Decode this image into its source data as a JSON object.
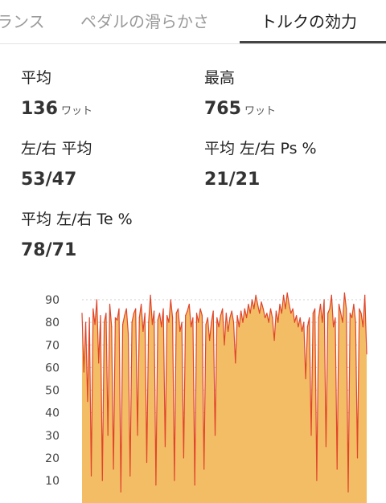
{
  "tabs": [
    {
      "label": "ランス",
      "active": false
    },
    {
      "label": "ペダルの滑らかさ",
      "active": false
    },
    {
      "label": "トルクの効力",
      "active": true
    }
  ],
  "stats": {
    "avg": {
      "label": "平均",
      "value": "136",
      "unit": "ワット"
    },
    "max": {
      "label": "最高",
      "value": "765",
      "unit": "ワット"
    },
    "lr_avg": {
      "label": "左/右 平均",
      "value": "53/47"
    },
    "avg_lr_ps": {
      "label": "平均 左/右 Ps %",
      "value": "21/21"
    },
    "avg_lr_te": {
      "label": "平均 左/右 Te %",
      "value": "78/71"
    }
  },
  "colors": {
    "area_fill": "#f3bd66",
    "area_fill_light": "#f8d9a3",
    "line": "#e0452a",
    "grid": "#cfcfcf"
  },
  "chart_data": {
    "type": "area",
    "ylim": [
      0,
      95
    ],
    "yticks": [
      10,
      20,
      30,
      40,
      50,
      60,
      70,
      80,
      90
    ],
    "series": [
      {
        "values": [
          84,
          58,
          80,
          45,
          82,
          12,
          86,
          79,
          90,
          62,
          83,
          10,
          80,
          84,
          30,
          88,
          78,
          15,
          82,
          81,
          86,
          5,
          79,
          83,
          86,
          75,
          12,
          80,
          84,
          86,
          30,
          82,
          88,
          76,
          84,
          18,
          80,
          92,
          79,
          85,
          8,
          81,
          84,
          78,
          86,
          25,
          83,
          80,
          90,
          82,
          10,
          84,
          86,
          76,
          80,
          20,
          83,
          85,
          88,
          78,
          82,
          8,
          84,
          80,
          86,
          83,
          15,
          79,
          82,
          72,
          80,
          85,
          30,
          82,
          78,
          83,
          86,
          70,
          84,
          76,
          82,
          85,
          80,
          62,
          83,
          78,
          85,
          80,
          86,
          82,
          88,
          84,
          90,
          86,
          92,
          88,
          84,
          89,
          86,
          82,
          84,
          80,
          86,
          82,
          72,
          85,
          80,
          88,
          84,
          92,
          86,
          93,
          88,
          84,
          86,
          80,
          83,
          78,
          82,
          76,
          80,
          55,
          78,
          82,
          30,
          84,
          86,
          10,
          82,
          88,
          80,
          90,
          25,
          84,
          86,
          92,
          78,
          82,
          15,
          88,
          84,
          80,
          93,
          86,
          5,
          84,
          82,
          88,
          80,
          20,
          86,
          84,
          78,
          92,
          66
        ]
      }
    ]
  }
}
